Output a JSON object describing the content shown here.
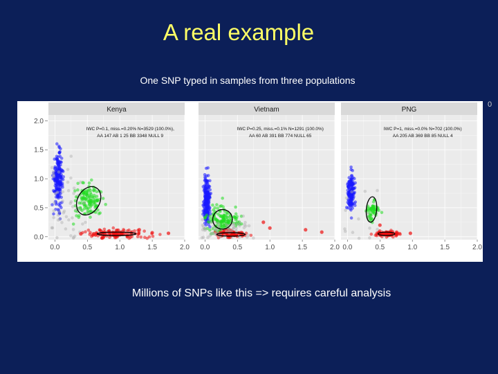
{
  "slide": {
    "title": "A real example",
    "subtitle": "One SNP typed in samples from three populations",
    "footer": "Millions of SNPs like this => requires careful analysis",
    "edge_glyph": "0"
  },
  "colors": {
    "background": "#0c1f58",
    "title": "#ffff66",
    "text": "#ffffff",
    "panel_bg": "#ebebeb",
    "strip_bg": "#d9d9d9",
    "cluster_AA": "#1a1aff",
    "cluster_AB": "#22dd22",
    "cluster_BB": "#ee1111",
    "cluster_null": "#b0b0b0"
  },
  "chart_data": {
    "type": "scatter",
    "facet_by": "population",
    "shared_axes": true,
    "x_ticks": [
      "0.0",
      "0.5",
      "1.0",
      "1.5",
      "2.0"
    ],
    "y_ticks": [
      "0.0",
      "0.5",
      "1.0",
      "1.5",
      "2.0"
    ],
    "xlim": [
      -0.1,
      2.0
    ],
    "ylim": [
      -0.05,
      2.1
    ],
    "grid": true,
    "legend": "none",
    "panels": [
      {
        "name": "Kenya",
        "annot1": "IWC P=0.1, miss.=0.20% N=3529 (100.0%),",
        "annot2": "AA 147 AB 1 25 BB 3348 NULL 9",
        "clusters": [
          {
            "genotype": "AA",
            "color": "#1a1aff",
            "x": 0.05,
            "y": 1.0,
            "sx": 0.035,
            "sy": 0.22,
            "n": 200
          },
          {
            "genotype": "AB",
            "color": "#22dd22",
            "x": 0.52,
            "y": 0.62,
            "sx": 0.12,
            "sy": 0.14,
            "n": 130
          },
          {
            "genotype": "BB",
            "color": "#ee1111",
            "x": 0.95,
            "y": 0.05,
            "sx": 0.25,
            "sy": 0.04,
            "n": 130
          },
          {
            "genotype": "NULL",
            "color": "#b0b0b0",
            "x": 0.2,
            "y": 0.45,
            "sx": 0.2,
            "sy": 0.4,
            "n": 50
          }
        ],
        "ellipses": [
          {
            "cx": 0.52,
            "cy": 0.62,
            "rx": 0.17,
            "ry": 0.26,
            "angle": 30
          },
          {
            "cx": 0.95,
            "cy": 0.05,
            "rx": 0.3,
            "ry": 0.03,
            "angle": 0
          }
        ],
        "outliers": [
          [
            1.5,
            0.07
          ],
          [
            1.75,
            0.06
          ],
          [
            1.3,
            0.12
          ],
          [
            0.4,
            0.05
          ]
        ]
      },
      {
        "name": "Vietnam",
        "annot1": "IWC P=0.25, miss.=0.1% N=1291 (100.0%)",
        "annot2": "AA 60 AB 391 BB 774 NULL 65",
        "clusters": [
          {
            "genotype": "AA",
            "color": "#1a1aff",
            "x": 0.03,
            "y": 0.6,
            "sx": 0.025,
            "sy": 0.22,
            "n": 200
          },
          {
            "genotype": "AB",
            "color": "#22dd22",
            "x": 0.27,
            "y": 0.28,
            "sx": 0.12,
            "sy": 0.12,
            "n": 150
          },
          {
            "genotype": "BB",
            "color": "#ee1111",
            "x": 0.4,
            "y": 0.05,
            "sx": 0.12,
            "sy": 0.03,
            "n": 110
          },
          {
            "genotype": "NULL",
            "color": "#b0b0b0",
            "x": 0.35,
            "y": 0.12,
            "sx": 0.25,
            "sy": 0.1,
            "n": 60
          }
        ],
        "ellipses": [
          {
            "cx": 0.27,
            "cy": 0.3,
            "rx": 0.15,
            "ry": 0.17,
            "angle": 45
          },
          {
            "cx": 0.4,
            "cy": 0.04,
            "rx": 0.22,
            "ry": 0.03,
            "angle": 0
          }
        ],
        "outliers": [
          [
            1.55,
            0.12
          ],
          [
            1.0,
            0.15
          ],
          [
            0.9,
            0.25
          ],
          [
            1.8,
            0.08
          ]
        ]
      },
      {
        "name": "PNG",
        "annot1": "IWC P=1, miss.=0.0% N=702 (100.0%)",
        "annot2": "AA 205 AB 369 BB 85 NULL 4",
        "clusters": [
          {
            "genotype": "AA",
            "color": "#1a1aff",
            "x": 0.05,
            "y": 0.75,
            "sx": 0.025,
            "sy": 0.15,
            "n": 150
          },
          {
            "genotype": "AB",
            "color": "#22dd22",
            "x": 0.38,
            "y": 0.45,
            "sx": 0.05,
            "sy": 0.1,
            "n": 60
          },
          {
            "genotype": "BB",
            "color": "#ee1111",
            "x": 0.6,
            "y": 0.05,
            "sx": 0.1,
            "sy": 0.025,
            "n": 90
          },
          {
            "genotype": "NULL",
            "color": "#b0b0b0",
            "x": 0.2,
            "y": 0.3,
            "sx": 0.2,
            "sy": 0.25,
            "n": 15
          }
        ],
        "ellipses": [
          {
            "cx": 0.37,
            "cy": 0.47,
            "rx": 0.08,
            "ry": 0.22,
            "angle": 5
          },
          {
            "cx": 0.6,
            "cy": 0.05,
            "rx": 0.13,
            "ry": 0.03,
            "angle": 0
          }
        ],
        "outliers": [
          [
            0.97,
            0.06
          ],
          [
            0.5,
            0.2
          ],
          [
            0.75,
            0.02
          ]
        ]
      }
    ]
  }
}
